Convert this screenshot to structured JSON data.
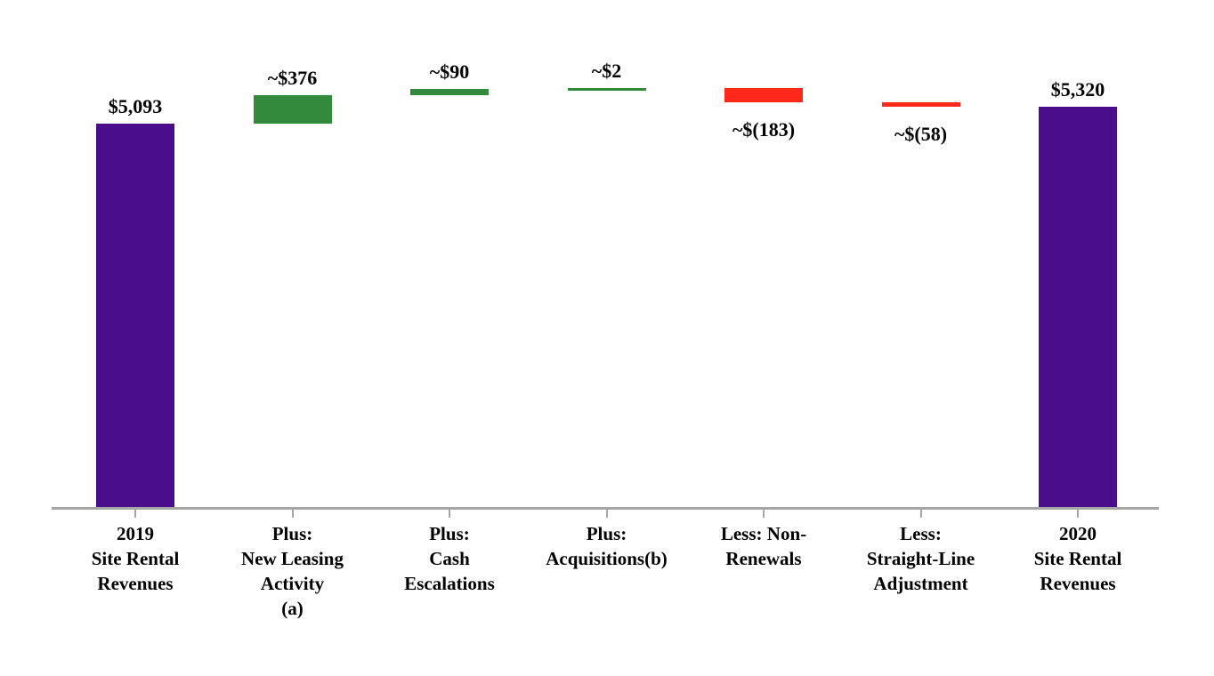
{
  "chart_data": {
    "type": "waterfall",
    "title": "",
    "grid": false,
    "legend": false,
    "ylim": [
      0,
      5600
    ],
    "colors": {
      "total": "#4A0D8C",
      "increase": "#348A3C",
      "decrease": "#FC281A",
      "axis": "#A6A6A6",
      "text": "#000000"
    },
    "bars": [
      {
        "label_lines": [
          "2019",
          "Site Rental",
          "Revenues"
        ],
        "value_label": "$5,093",
        "value": 5093,
        "role": "total",
        "value_label_position": "above"
      },
      {
        "label_lines": [
          "Plus:",
          "New Leasing",
          "Activity",
          "(a)"
        ],
        "value_label": "~$376",
        "value": 376,
        "role": "increase",
        "value_label_position": "above"
      },
      {
        "label_lines": [
          "Plus:",
          "Cash",
          "Escalations"
        ],
        "value_label": "~$90",
        "value": 90,
        "role": "increase",
        "value_label_position": "above"
      },
      {
        "label_lines": [
          "Plus:",
          "Acquisitions(b)"
        ],
        "value_label": "~$2",
        "value": 2,
        "role": "increase",
        "value_label_position": "above"
      },
      {
        "label_lines": [
          "Less: Non-",
          "Renewals"
        ],
        "value_label": "~$(183)",
        "value": -183,
        "role": "decrease",
        "value_label_position": "below"
      },
      {
        "label_lines": [
          "Less:",
          "Straight-Line",
          "Adjustment"
        ],
        "value_label": "~$(58)",
        "value": -58,
        "role": "decrease",
        "value_label_position": "below"
      },
      {
        "label_lines": [
          "2020",
          "Site Rental",
          "Revenues"
        ],
        "value_label": "$5,320",
        "value": 5320,
        "role": "total",
        "value_label_position": "above"
      }
    ]
  }
}
